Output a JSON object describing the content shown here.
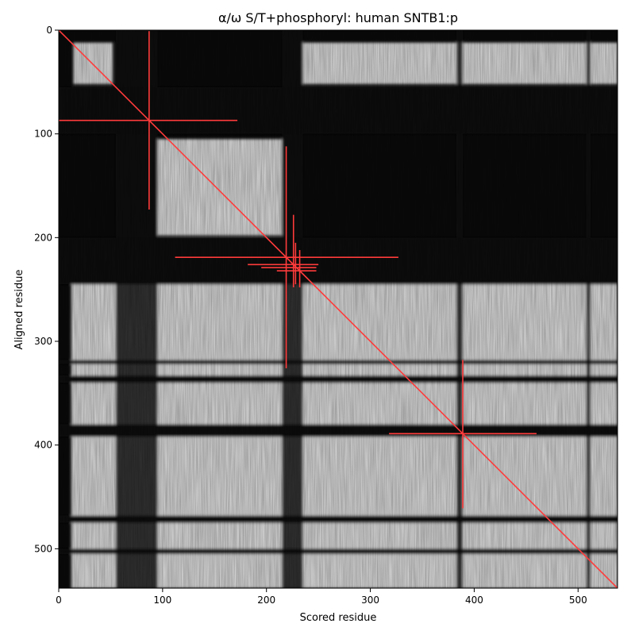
{
  "chart_data": {
    "type": "heatmap",
    "title": "α/ω S/T+phosphoryl: human SNTB1:p",
    "xlabel": "Scored residue",
    "ylabel": "Aligned residue",
    "xlim": [
      0,
      538
    ],
    "ylim": [
      538,
      0
    ],
    "xticks": [
      0,
      100,
      200,
      300,
      400,
      500
    ],
    "yticks": [
      0,
      100,
      200,
      300,
      400,
      500
    ],
    "colormap": "grayscale",
    "grid": false,
    "diagonal_color": "#ff3b3b",
    "bright_blocks": [
      {
        "x": [
          14,
          52
        ],
        "y": [
          12,
          52
        ]
      },
      {
        "x": [
          95,
          215
        ],
        "y": [
          105,
          198
        ]
      },
      {
        "x": [
          235,
          538
        ],
        "y": [
          12,
          52
        ]
      },
      {
        "x": [
          12,
          538
        ],
        "y": [
          245,
          538
        ]
      }
    ],
    "dark_bands_rows": [
      {
        "y": [
          55,
          100
        ]
      },
      {
        "y": [
          200,
          212
        ]
      },
      {
        "y": [
          212,
          245
        ]
      },
      {
        "y": [
          318,
          322
        ]
      },
      {
        "y": [
          333,
          340
        ]
      },
      {
        "y": [
          380,
          392
        ]
      },
      {
        "y": [
          468,
          475
        ]
      },
      {
        "y": [
          500,
          505
        ]
      }
    ],
    "dark_bands_cols": [
      {
        "x": [
          55,
          95
        ]
      },
      {
        "x": [
          215,
          235
        ]
      },
      {
        "x": [
          383,
          389
        ]
      },
      {
        "x": [
          508,
          512
        ]
      }
    ],
    "crosshairs": [
      {
        "x": 87,
        "y": 87,
        "hx": [
          0,
          172
        ],
        "vy": [
          1,
          173
        ]
      },
      {
        "x": 219,
        "y": 219,
        "hx": [
          112,
          327
        ],
        "vy": [
          112,
          326
        ]
      },
      {
        "x": 226,
        "y": 226,
        "hx": [
          182,
          250
        ],
        "vy": [
          178,
          248
        ]
      },
      {
        "x": 228,
        "y": 229,
        "hx": [
          195,
          248
        ],
        "vy": [
          205,
          245
        ]
      },
      {
        "x": 232,
        "y": 232,
        "hx": [
          210,
          248
        ],
        "vy": [
          212,
          248
        ]
      },
      {
        "x": 389,
        "y": 389,
        "hx": [
          318,
          460
        ],
        "vy": [
          318,
          461
        ]
      }
    ]
  }
}
